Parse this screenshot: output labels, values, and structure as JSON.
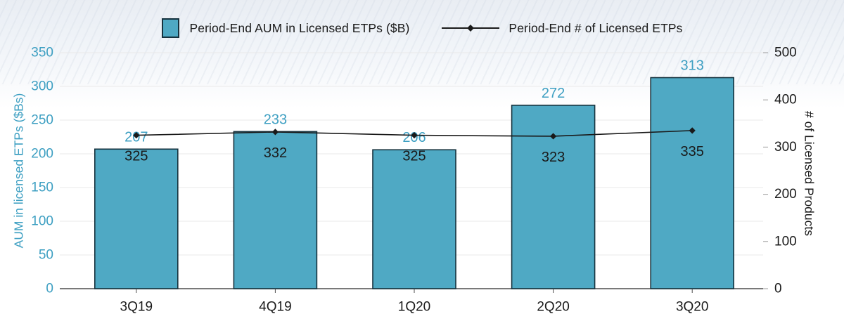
{
  "legend": {
    "bar_label": "Period-End AUM in Licensed ETPs ($B)",
    "line_label": "Period-End # of Licensed ETPs"
  },
  "axes": {
    "left_title": "AUM in licensed ETPs ($Bs)",
    "right_title": "# of Licensed Products"
  },
  "colors": {
    "bar_fill": "#4FA9C4",
    "bar_border": "#16323E",
    "teal_text": "#3D9FC2",
    "line_color": "#1A1A1A",
    "grid": "#E9E9E9",
    "axis_line": "#4D4D4D",
    "tick_mark": "#9A9A9A",
    "black_text": "#1A1A1A"
  },
  "chart_data": {
    "type": "bar",
    "subtype": "bar-line combo, dual axis",
    "categories": [
      "3Q19",
      "4Q19",
      "1Q20",
      "2Q20",
      "3Q20"
    ],
    "series": [
      {
        "name": "Period-End AUM in Licensed ETPs ($B)",
        "type": "bar",
        "axis": "left",
        "values": [
          207,
          233,
          206,
          272,
          313
        ]
      },
      {
        "name": "Period-End # of Licensed ETPs",
        "type": "line",
        "axis": "right",
        "marker": "diamond",
        "values": [
          325,
          332,
          325,
          323,
          335
        ]
      }
    ],
    "left_axis": {
      "label": "AUM in licensed ETPs ($Bs)",
      "min": 0,
      "max": 350,
      "step": 50
    },
    "right_axis": {
      "label": "# of Licensed Products",
      "min": 0,
      "max": 500,
      "step": 100
    },
    "grid": true,
    "legend_position": "top",
    "title": ""
  }
}
